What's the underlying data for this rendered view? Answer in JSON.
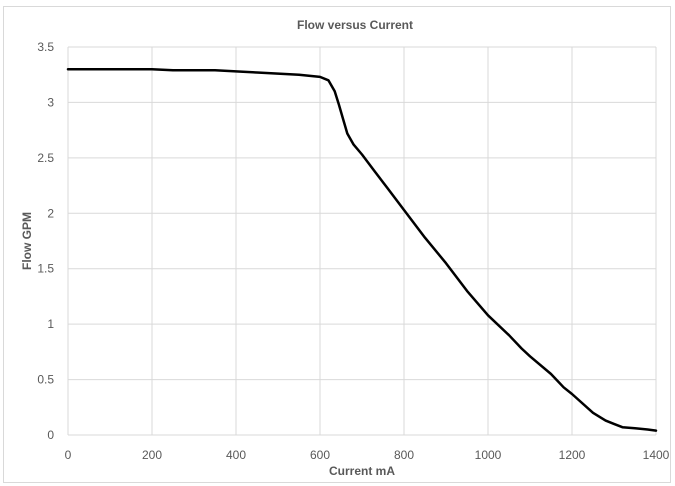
{
  "chart_data": {
    "type": "line",
    "title": "Flow versus Current",
    "xlabel": "Current mA",
    "ylabel": "Flow GPM",
    "xlim": [
      0,
      1400
    ],
    "ylim": [
      0,
      3.5
    ],
    "x_ticks": [
      0,
      200,
      400,
      600,
      800,
      1000,
      1200,
      1400
    ],
    "y_ticks": [
      0,
      0.5,
      1,
      1.5,
      2,
      2.5,
      3,
      3.5
    ],
    "x_tick_labels": [
      "0",
      "200",
      "400",
      "600",
      "800",
      "1000",
      "1200",
      "1400"
    ],
    "y_tick_labels": [
      "0",
      "0.5",
      "1",
      "1.5",
      "2",
      "2.5",
      "3",
      "3.5"
    ],
    "grid": true,
    "series": [
      {
        "color": "#000000",
        "x": [
          0,
          100,
          200,
          250,
          300,
          350,
          400,
          450,
          500,
          550,
          600,
          620,
          635,
          645,
          655,
          665,
          680,
          700,
          730,
          760,
          800,
          850,
          900,
          950,
          1000,
          1050,
          1080,
          1100,
          1150,
          1180,
          1200,
          1250,
          1280,
          1300,
          1320,
          1350,
          1380,
          1400
        ],
        "y": [
          3.3,
          3.3,
          3.3,
          3.29,
          3.29,
          3.29,
          3.28,
          3.27,
          3.26,
          3.25,
          3.23,
          3.2,
          3.1,
          2.98,
          2.85,
          2.72,
          2.62,
          2.53,
          2.38,
          2.23,
          2.03,
          1.78,
          1.55,
          1.3,
          1.08,
          0.9,
          0.78,
          0.71,
          0.55,
          0.43,
          0.37,
          0.2,
          0.13,
          0.1,
          0.07,
          0.06,
          0.05,
          0.04
        ]
      }
    ]
  }
}
